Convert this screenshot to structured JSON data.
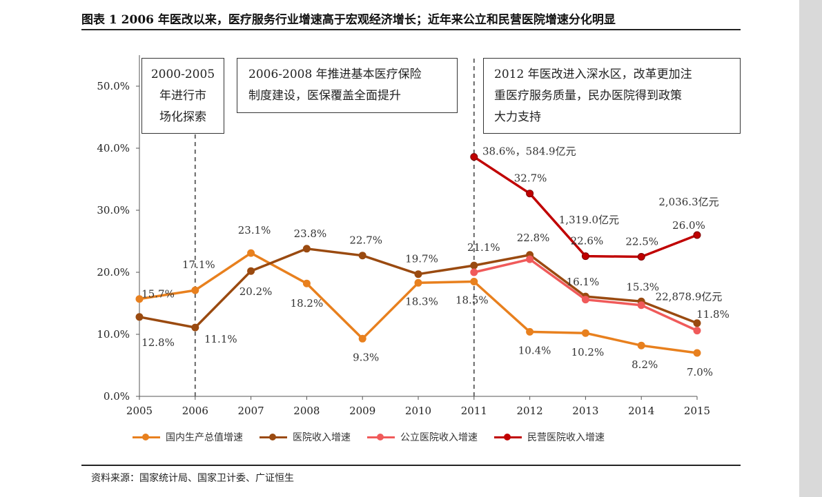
{
  "figure_title": "图表 1 2006 年医改以来，医疗服务行业增速高于宏观经济增长；近年来公立和民营医院增速分化明显",
  "source_note": "资料来源：国家统计局、国家卫计委、广证恒生",
  "annotations": [
    {
      "lines": [
        "2000-2005",
        "年进行市",
        "场化探索"
      ]
    },
    {
      "lines": [
        "2006-2008 年推进基本医疗保险",
        "制度建设，医保覆盖全面提升"
      ]
    },
    {
      "lines": [
        "2012 年医改进入深水区，改革更加注",
        "重医疗服务质量，民办医院得到政策",
        "大力支持"
      ]
    }
  ],
  "colors": {
    "gdp": "#e8801e",
    "hospital": "#9a4a10",
    "public": "#f05a5a",
    "private": "#c00000"
  },
  "chart_data": {
    "type": "line",
    "x": [
      2005,
      2006,
      2007,
      2008,
      2009,
      2010,
      2011,
      2012,
      2013,
      2014,
      2015
    ],
    "x_tick_labels": [
      "2005",
      "2006",
      "2007",
      "2008",
      "2009",
      "2010",
      "2011",
      "2012",
      "2013",
      "2014",
      "2015"
    ],
    "y_ticks": [
      0,
      10,
      20,
      30,
      40,
      50
    ],
    "y_tick_labels": [
      "0.0%",
      "10.0%",
      "20.0%",
      "30.0%",
      "40.0%",
      "50.0%"
    ],
    "ylim": [
      0,
      55
    ],
    "grid": false,
    "legend_position": "bottom",
    "vlines": [
      2006,
      2011
    ],
    "series": [
      {
        "name": "国内生产总值增速",
        "color_key": "gdp",
        "values": [
          15.7,
          17.1,
          23.1,
          18.2,
          9.3,
          18.3,
          18.5,
          10.4,
          10.2,
          8.2,
          7.0
        ],
        "labels": [
          "15.7%",
          "17.1%",
          "23.1%",
          "18.2%",
          "9.3%",
          "18.3%",
          "18.5%",
          "10.4%",
          "10.2%",
          "8.2%",
          "7.0%"
        ]
      },
      {
        "name": "医院收入增速",
        "color_key": "hospital",
        "values": [
          12.8,
          11.1,
          20.2,
          23.8,
          22.7,
          19.7,
          21.1,
          22.8,
          16.1,
          15.3,
          11.8
        ],
        "labels": [
          "12.8%",
          "11.1%",
          "20.2%",
          "23.8%",
          "22.7%",
          "19.7%",
          "21.1%",
          "22.8%",
          "16.1%",
          "15.3%",
          "11.8%"
        ]
      },
      {
        "name": "公立医院收入增速",
        "color_key": "public",
        "values": [
          null,
          null,
          null,
          null,
          null,
          null,
          20.0,
          22.1,
          15.6,
          14.7,
          10.6
        ],
        "labels": [
          null,
          null,
          null,
          null,
          null,
          null,
          null,
          null,
          null,
          null,
          "22,878.9亿元"
        ]
      },
      {
        "name": "民营医院收入增速",
        "color_key": "private",
        "values": [
          null,
          null,
          null,
          null,
          null,
          null,
          38.6,
          32.7,
          22.6,
          22.5,
          26.0
        ],
        "labels": [
          null,
          null,
          null,
          null,
          null,
          null,
          "38.6%，584.9亿元",
          "32.7%",
          "22.6%",
          "22.5%",
          "26.0%"
        ]
      }
    ],
    "extra_annotations": [
      "1,319.0亿元",
      "2,036.3亿元"
    ]
  }
}
